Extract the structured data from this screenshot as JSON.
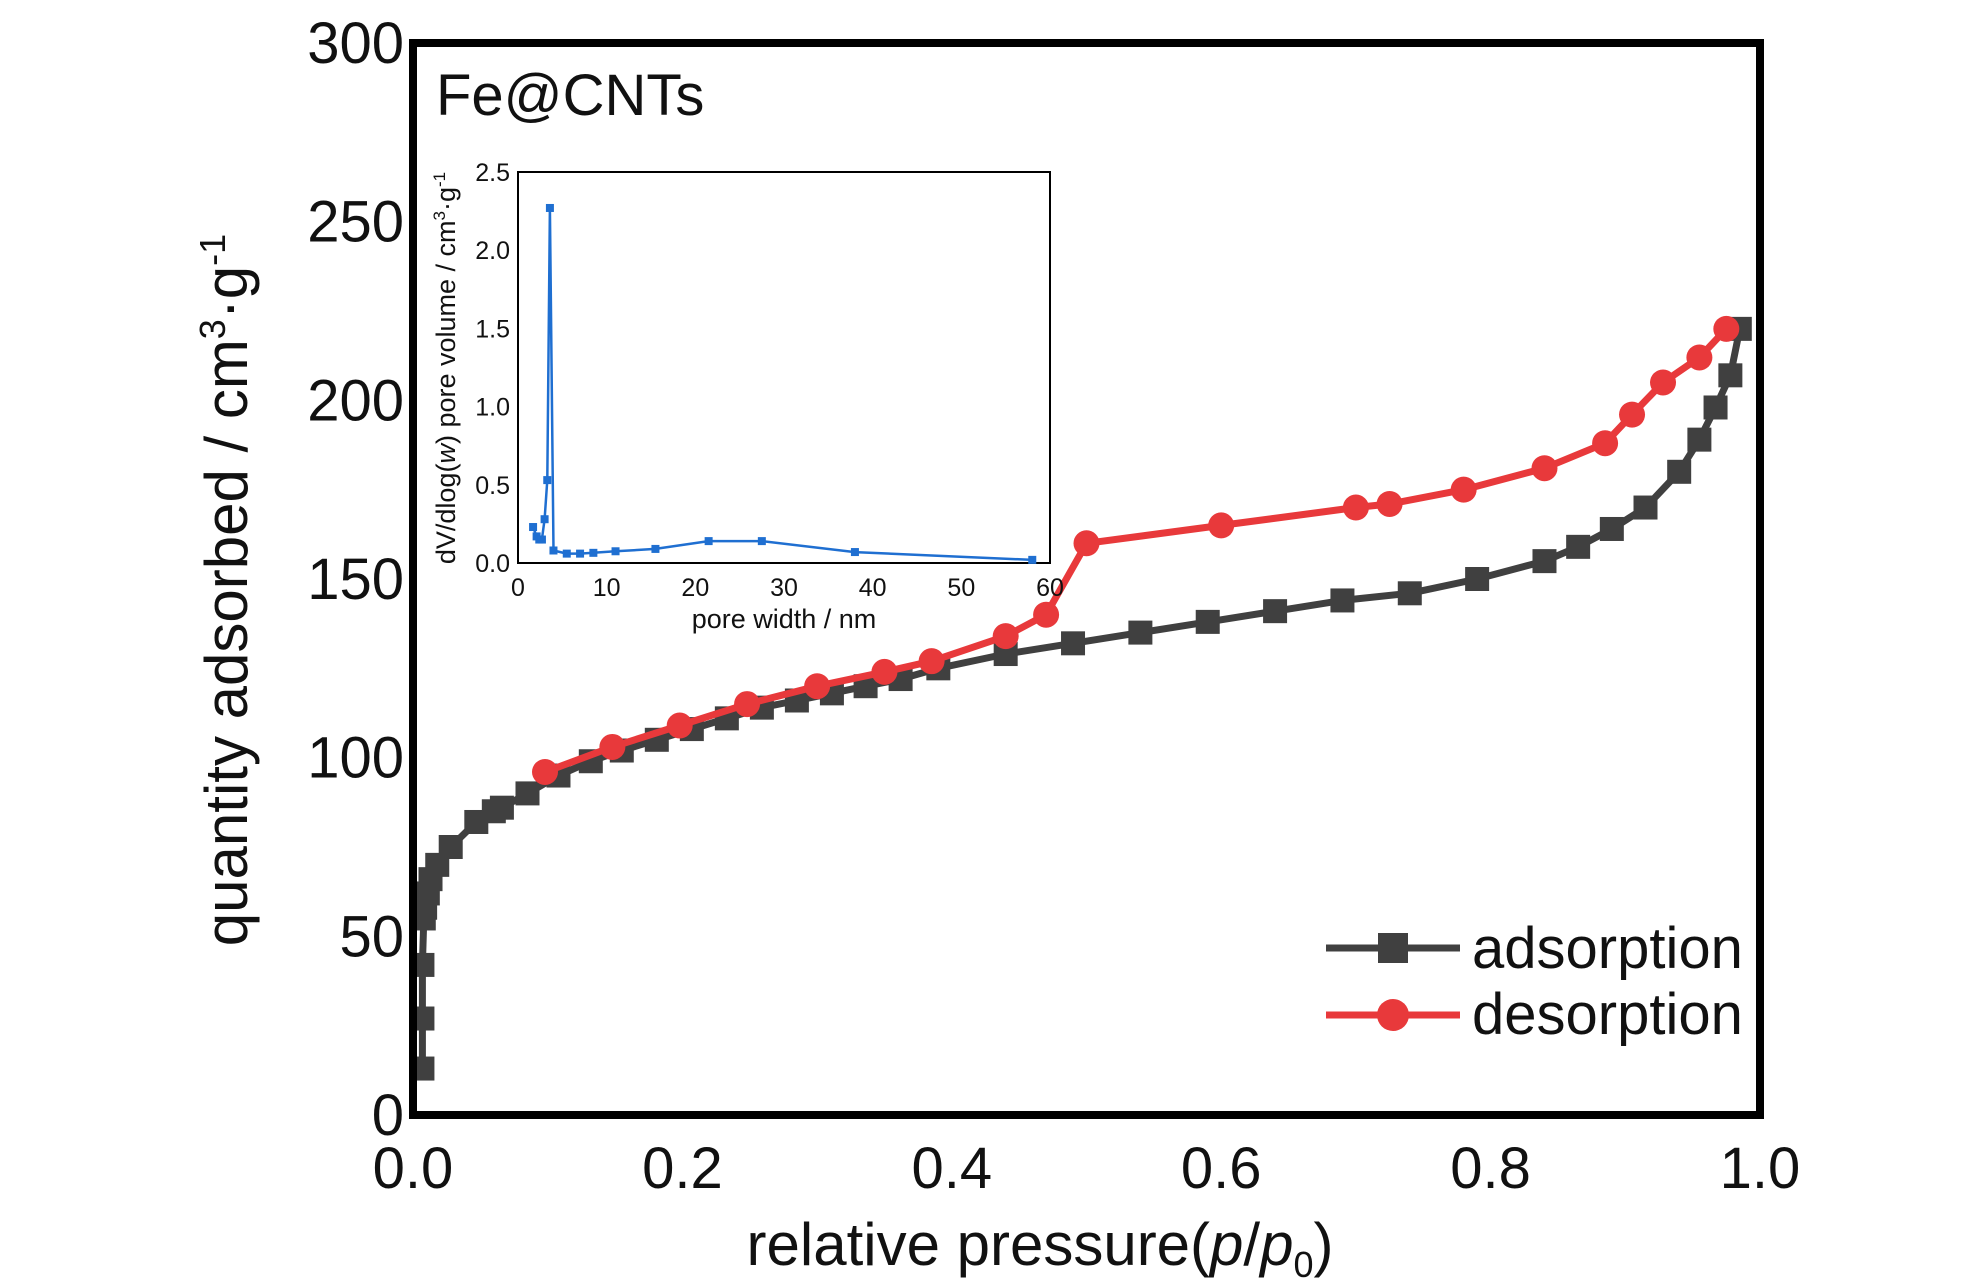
{
  "colors": {
    "adsorption": "#404040",
    "desorption": "#e8393b",
    "inset_series": "#1f6fd1",
    "frame": "#000000"
  },
  "chart_data": [
    {
      "type": "line",
      "panel_label": "Fe@CNTs",
      "xlabel": "relative pressure(p/p0)",
      "xlabel_parts": [
        "relative pressure(",
        "p",
        "/",
        "p",
        "0",
        ")"
      ],
      "ylabel": "quantity adsorbed / cm3·g-1",
      "ylabel_parts": [
        "quantity adsorbed / cm",
        "3",
        "·g",
        "-1"
      ],
      "xlim": [
        0.0,
        1.0
      ],
      "ylim": [
        0,
        300
      ],
      "xticks": [
        "0.0",
        "0.2",
        "0.4",
        "0.6",
        "0.8",
        "1.0"
      ],
      "xtick_values": [
        0.0,
        0.2,
        0.4,
        0.6,
        0.8,
        1.0
      ],
      "yticks": [
        "0",
        "50",
        "100",
        "150",
        "200",
        "250",
        "300"
      ],
      "ytick_values": [
        0,
        50,
        100,
        150,
        200,
        250,
        300
      ],
      "grid": false,
      "legend_position": "bottom-right",
      "series": [
        {
          "name": "adsorption",
          "marker": "square",
          "x": [
            0.007,
            0.007,
            0.007,
            0.008,
            0.009,
            0.011,
            0.013,
            0.018,
            0.028,
            0.047,
            0.06,
            0.066,
            0.085,
            0.108,
            0.132,
            0.155,
            0.181,
            0.207,
            0.233,
            0.259,
            0.285,
            0.311,
            0.336,
            0.362,
            0.39,
            0.44,
            0.49,
            0.54,
            0.59,
            0.64,
            0.69,
            0.74,
            0.79,
            0.84,
            0.865,
            0.89,
            0.915,
            0.94,
            0.955,
            0.967,
            0.978,
            0.985
          ],
          "y": [
            13,
            27,
            42,
            55,
            58,
            62,
            66,
            70,
            75,
            82,
            85,
            86,
            90,
            95,
            99,
            102,
            105,
            108,
            111,
            114,
            116,
            118,
            120,
            122,
            125,
            129,
            132,
            135,
            138,
            141,
            144,
            146,
            150,
            155,
            159,
            164,
            170,
            180,
            189,
            198,
            207,
            220
          ]
        },
        {
          "name": "desorption",
          "marker": "circle",
          "x": [
            0.098,
            0.148,
            0.198,
            0.248,
            0.3,
            0.35,
            0.385,
            0.44,
            0.47,
            0.5,
            0.6,
            0.7,
            0.725,
            0.78,
            0.84,
            0.885,
            0.905,
            0.928,
            0.955,
            0.975
          ],
          "y": [
            96,
            103,
            109,
            115,
            120,
            124,
            127,
            134,
            140,
            160,
            165,
            170,
            171,
            175,
            181,
            188,
            196,
            205,
            212,
            220
          ]
        }
      ]
    },
    {
      "type": "line",
      "xlabel": "pore width / nm",
      "ylabel": "dV/dlog(w) pore volume / cm3·g-1",
      "ylabel_parts": [
        "dV/dlog(",
        "w",
        ") pore volume / cm",
        "3",
        "·g",
        "-1"
      ],
      "xlim": [
        0,
        60
      ],
      "ylim": [
        0,
        2.5
      ],
      "xticks": [
        "0",
        "10",
        "20",
        "30",
        "40",
        "50",
        "60"
      ],
      "xtick_values": [
        0,
        10,
        20,
        30,
        40,
        50,
        60
      ],
      "yticks": [
        "0.0",
        "0.5",
        "1.0",
        "1.5",
        "2.0",
        "2.5"
      ],
      "ytick_values": [
        0.0,
        0.5,
        1.0,
        1.5,
        2.0,
        2.5
      ],
      "grid": false,
      "series": [
        {
          "marker": "square",
          "x": [
            1.7,
            2.1,
            2.4,
            2.7,
            3.0,
            3.3,
            3.6,
            4.0,
            5.5,
            7.0,
            8.5,
            11,
            15.5,
            21.5,
            27.5,
            38.0,
            58.0
          ],
          "y": [
            0.23,
            0.17,
            0.15,
            0.15,
            0.28,
            0.53,
            2.27,
            0.08,
            0.06,
            0.06,
            0.065,
            0.075,
            0.09,
            0.14,
            0.14,
            0.07,
            0.02
          ]
        }
      ]
    }
  ]
}
